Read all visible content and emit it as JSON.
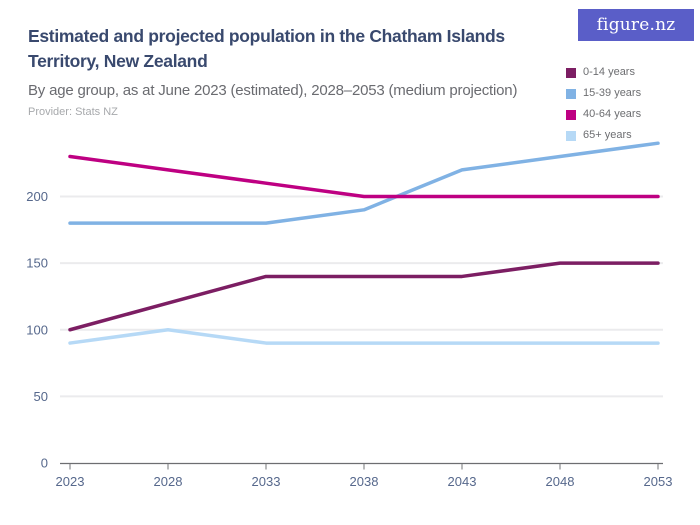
{
  "header": {
    "title_line1": "Estimated and projected population in the Chatham Islands",
    "title_line2": "Territory, New Zealand",
    "subtitle": "By age group, as at June 2023 (estimated), 2028–2053 (medium projection)",
    "provider": "Provider: Stats NZ",
    "logo_text": "figure.nz"
  },
  "colors": {
    "logo_bg": "#5A5EC8",
    "title": "#39496E",
    "subtitle": "#6A6B70",
    "provider": "#A7A9AC",
    "axis_label": "#56688C",
    "legend_label": "#6D6E71",
    "grid": "#EBEBED",
    "axis_line": "#6D6E71",
    "tick": "#8A8C8E"
  },
  "chart_data": {
    "type": "line",
    "title": "Estimated and projected population in the Chatham Islands Territory, New Zealand",
    "xlabel": "",
    "ylabel": "",
    "x": [
      2023,
      2028,
      2033,
      2038,
      2043,
      2048,
      2053
    ],
    "series": [
      {
        "name": "0-14 years",
        "color": "#7C1E63",
        "values": [
          100,
          120,
          140,
          140,
          140,
          150,
          150
        ]
      },
      {
        "name": "15-39 years",
        "color": "#80B2E4",
        "values": [
          180,
          180,
          180,
          190,
          220,
          230,
          240
        ]
      },
      {
        "name": "40-64 years",
        "color": "#BE0082",
        "values": [
          230,
          220,
          210,
          200,
          200,
          200,
          200
        ]
      },
      {
        "name": "65+ years",
        "color": "#B6D9F6",
        "values": [
          90,
          100,
          90,
          90,
          90,
          90,
          90
        ]
      }
    ],
    "ylim": [
      0,
      245
    ],
    "yticks": [
      0,
      50,
      100,
      150,
      200
    ],
    "grid": "horizontal",
    "legend_position": "top-right"
  }
}
